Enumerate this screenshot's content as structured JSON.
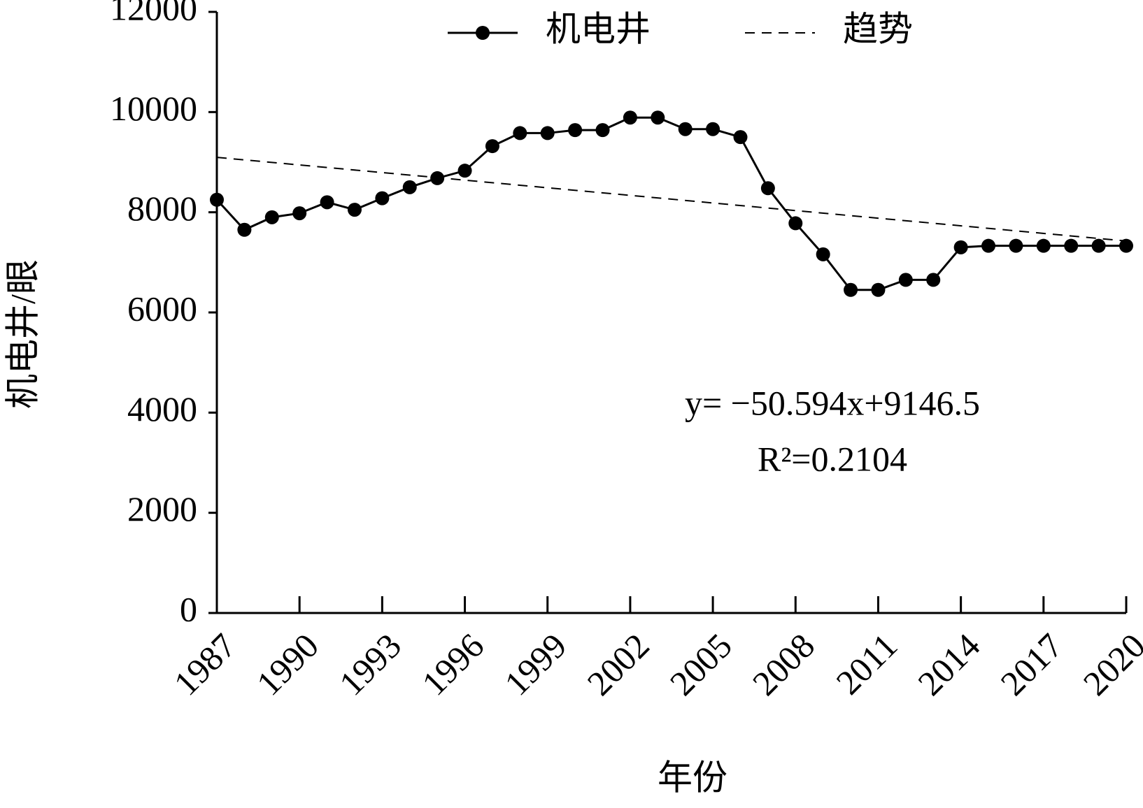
{
  "chart_data": {
    "type": "line",
    "x_label": "年份",
    "y_label": "机电井/眼",
    "x": [
      1987,
      1988,
      1989,
      1990,
      1991,
      1992,
      1993,
      1994,
      1995,
      1996,
      1997,
      1998,
      1999,
      2000,
      2001,
      2002,
      2003,
      2004,
      2005,
      2006,
      2007,
      2008,
      2009,
      2010,
      2011,
      2012,
      2013,
      2014,
      2015,
      2016,
      2017,
      2018,
      2019,
      2020
    ],
    "series": [
      {
        "name": "机电井",
        "color": "#000000",
        "marker": "circle",
        "values": [
          8250,
          7650,
          7900,
          7980,
          8200,
          8050,
          8280,
          8500,
          8680,
          8830,
          9320,
          9580,
          9580,
          9640,
          9640,
          9890,
          9890,
          9660,
          9660,
          9500,
          8480,
          7780,
          7160,
          6450,
          6450,
          6650,
          6650,
          7300,
          7330,
          7330,
          7330,
          7330,
          7330,
          7330
        ]
      },
      {
        "name": "趋势",
        "color": "#000000",
        "dashed": true,
        "x": [
          1987,
          2020
        ],
        "values": [
          9096,
          7426
        ]
      }
    ],
    "annotations": [
      "y= −50.594x+9146.5",
      "R²=0.2104"
    ],
    "xlim": [
      1987,
      2020
    ],
    "xticks": [
      1987,
      1990,
      1993,
      1996,
      1999,
      2002,
      2005,
      2008,
      2011,
      2014,
      2017,
      2020
    ],
    "ylim": [
      0,
      12000
    ],
    "yticks": [
      0,
      2000,
      4000,
      6000,
      8000,
      10000,
      12000
    ]
  }
}
